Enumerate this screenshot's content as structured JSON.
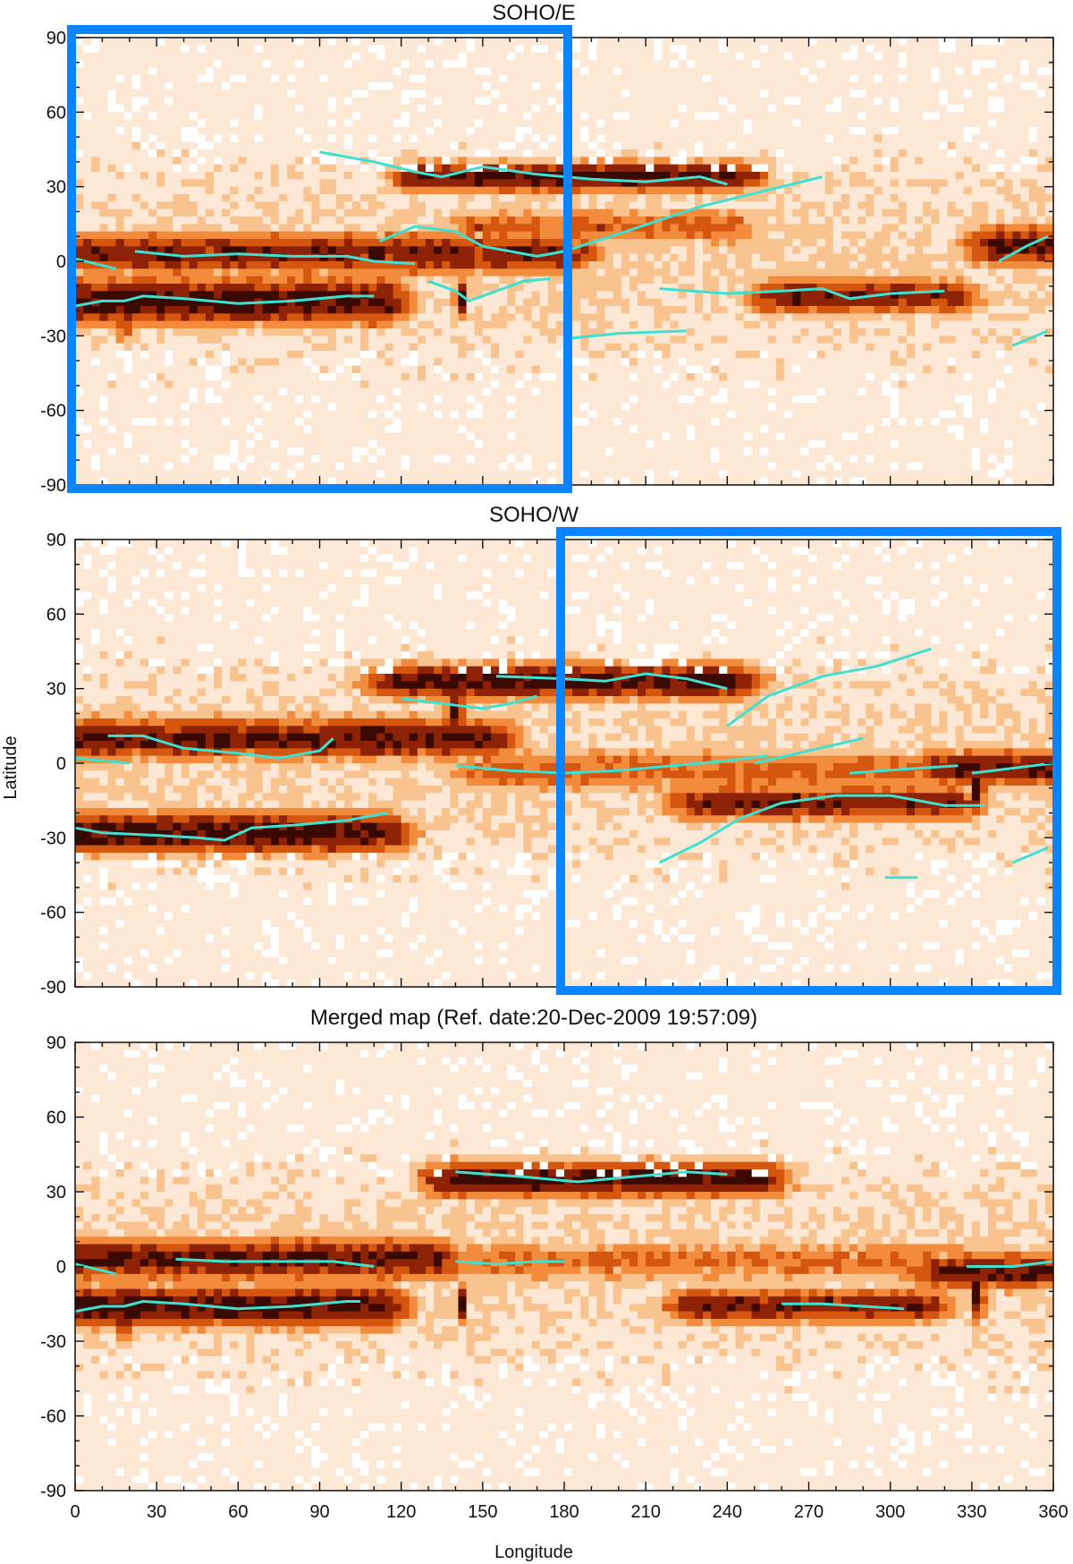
{
  "chart_data": [
    {
      "type": "heatmap",
      "title": "SOHO/E",
      "xlim": [
        0,
        360
      ],
      "ylim": [
        -90,
        90
      ],
      "xticks": [
        0,
        30,
        60,
        90,
        120,
        150,
        180,
        210,
        240,
        270,
        300,
        330,
        360
      ],
      "yticks": [
        90,
        60,
        30,
        0,
        -30,
        -60,
        -90
      ],
      "x_tick_labels_shown": false,
      "colormap": [
        "#ffffff",
        "#fde8d5",
        "#f9c38f",
        "#f28c3c",
        "#d4560f",
        "#8e2206",
        "#3a0a02"
      ],
      "line_color": "#40e0d0",
      "highlight_box": {
        "color": "#0a84ff",
        "lon": [
          0,
          180
        ],
        "lat": [
          -90,
          90
        ]
      },
      "bands": [
        {
          "lon": [
            0,
            180
          ],
          "lat": 3,
          "width": 14,
          "strength": 0.75
        },
        {
          "lon": [
            0,
            110
          ],
          "lat": -16,
          "width": 16,
          "strength": 0.85
        },
        {
          "lon": [
            130,
            240
          ],
          "lat": 34,
          "width": 10,
          "strength": 0.85
        },
        {
          "lon": [
            150,
            240
          ],
          "lat": 14,
          "width": 12,
          "strength": 0.55
        },
        {
          "lon": [
            260,
            320
          ],
          "lat": -14,
          "width": 12,
          "strength": 0.75
        },
        {
          "lon": [
            340,
            360
          ],
          "lat": 6,
          "width": 14,
          "strength": 0.8
        }
      ],
      "spots": [
        {
          "lon": 142,
          "lat": -15,
          "width": 6,
          "strength": 1.0
        },
        {
          "lon": 18,
          "lat": -18,
          "width": 10,
          "strength": 0.9
        }
      ],
      "series": [
        {
          "points": [
            [
              0,
              1
            ],
            [
              15,
              -3
            ]
          ]
        },
        {
          "points": [
            [
              0,
              -18
            ],
            [
              10,
              -16
            ],
            [
              18,
              -16
            ],
            [
              25,
              -14
            ],
            [
              40,
              -15
            ],
            [
              60,
              -17
            ],
            [
              80,
              -16
            ],
            [
              100,
              -14
            ],
            [
              110,
              -14
            ]
          ]
        },
        {
          "points": [
            [
              22,
              4
            ],
            [
              40,
              2
            ],
            [
              60,
              3
            ],
            [
              80,
              2
            ],
            [
              100,
              2
            ],
            [
              110,
              0
            ],
            [
              125,
              -1
            ]
          ]
        },
        {
          "points": [
            [
              90,
              44
            ],
            [
              110,
              40
            ],
            [
              125,
              36
            ],
            [
              135,
              34
            ],
            [
              150,
              38
            ],
            [
              170,
              35
            ],
            [
              190,
              33
            ],
            [
              210,
              32
            ],
            [
              230,
              34
            ],
            [
              240,
              31
            ]
          ]
        },
        {
          "points": [
            [
              112,
              8
            ],
            [
              125,
              14
            ],
            [
              140,
              12
            ],
            [
              150,
              6
            ],
            [
              170,
              2
            ],
            [
              180,
              4
            ],
            [
              200,
              11
            ],
            [
              230,
              22
            ],
            [
              260,
              30
            ],
            [
              275,
              34
            ]
          ]
        },
        {
          "points": [
            [
              130,
              -8
            ],
            [
              140,
              -12
            ],
            [
              145,
              -16
            ],
            [
              155,
              -12
            ],
            [
              165,
              -8
            ],
            [
              175,
              -7
            ]
          ]
        },
        {
          "points": [
            [
              215,
              -11
            ],
            [
              240,
              -13
            ],
            [
              260,
              -12
            ],
            [
              275,
              -11
            ],
            [
              285,
              -15
            ],
            [
              300,
              -13
            ],
            [
              320,
              -12
            ]
          ]
        },
        {
          "points": [
            [
              182,
              -31
            ],
            [
              200,
              -29
            ],
            [
              225,
              -28
            ]
          ]
        },
        {
          "points": [
            [
              340,
              0
            ],
            [
              350,
              6
            ],
            [
              358,
              10
            ]
          ]
        },
        {
          "points": [
            [
              345,
              -34
            ],
            [
              358,
              -28
            ]
          ]
        }
      ]
    },
    {
      "type": "heatmap",
      "title": "SOHO/W",
      "ylabel": "Latitude",
      "xlim": [
        0,
        360
      ],
      "ylim": [
        -90,
        90
      ],
      "xticks": [
        0,
        30,
        60,
        90,
        120,
        150,
        180,
        210,
        240,
        270,
        300,
        330,
        360
      ],
      "yticks": [
        90,
        60,
        30,
        0,
        -30,
        -60,
        -90
      ],
      "x_tick_labels_shown": false,
      "colormap": [
        "#ffffff",
        "#fde8d5",
        "#f9c38f",
        "#f28c3c",
        "#d4560f",
        "#8e2206",
        "#3a0a02"
      ],
      "line_color": "#40e0d0",
      "highlight_box": {
        "color": "#0a84ff",
        "lon": [
          180,
          360
        ],
        "lat": [
          -90,
          90
        ]
      },
      "bands": [
        {
          "lon": [
            0,
            150
          ],
          "lat": 10,
          "width": 14,
          "strength": 0.8
        },
        {
          "lon": [
            0,
            110
          ],
          "lat": -28,
          "width": 14,
          "strength": 0.85
        },
        {
          "lon": [
            120,
            240
          ],
          "lat": 33,
          "width": 12,
          "strength": 0.85
        },
        {
          "lon": [
            150,
            330
          ],
          "lat": -3,
          "width": 14,
          "strength": 0.55
        },
        {
          "lon": [
            230,
            320
          ],
          "lat": -16,
          "width": 12,
          "strength": 0.75
        },
        {
          "lon": [
            320,
            360
          ],
          "lat": -2,
          "width": 12,
          "strength": 0.8
        }
      ],
      "spots": [
        {
          "lon": 140,
          "lat": 20,
          "width": 10,
          "strength": 0.9
        },
        {
          "lon": 332,
          "lat": -12,
          "width": 8,
          "strength": 0.95
        }
      ],
      "series": [
        {
          "points": [
            [
              0,
              2
            ],
            [
              20,
              0
            ]
          ]
        },
        {
          "points": [
            [
              0,
              -26
            ],
            [
              10,
              -28
            ],
            [
              30,
              -29
            ],
            [
              45,
              -30
            ],
            [
              55,
              -31
            ],
            [
              65,
              -26
            ],
            [
              80,
              -25
            ],
            [
              100,
              -23
            ],
            [
              115,
              -20
            ]
          ]
        },
        {
          "points": [
            [
              12,
              11
            ],
            [
              25,
              11
            ],
            [
              40,
              6
            ],
            [
              60,
              4
            ],
            [
              75,
              2
            ],
            [
              90,
              5
            ],
            [
              95,
              10
            ]
          ]
        },
        {
          "points": [
            [
              120,
              26
            ],
            [
              135,
              24
            ],
            [
              150,
              22
            ],
            [
              160,
              24
            ],
            [
              170,
              27
            ]
          ]
        },
        {
          "points": [
            [
              155,
              35
            ],
            [
              180,
              34
            ],
            [
              195,
              33
            ],
            [
              210,
              36
            ],
            [
              225,
              34
            ],
            [
              240,
              30
            ]
          ]
        },
        {
          "points": [
            [
              140,
              -1
            ],
            [
              160,
              -3
            ],
            [
              180,
              -4
            ],
            [
              200,
              -3
            ],
            [
              220,
              -1
            ],
            [
              240,
              1
            ],
            [
              255,
              3
            ]
          ]
        },
        {
          "points": [
            [
              240,
              15
            ],
            [
              255,
              27
            ],
            [
              275,
              35
            ],
            [
              295,
              39
            ],
            [
              315,
              46
            ]
          ]
        },
        {
          "points": [
            [
              250,
              0
            ],
            [
              270,
              5
            ],
            [
              290,
              10
            ]
          ]
        },
        {
          "points": [
            [
              285,
              -4
            ],
            [
              310,
              -2
            ],
            [
              325,
              -1
            ]
          ]
        },
        {
          "points": [
            [
              215,
              -40
            ],
            [
              230,
              -32
            ],
            [
              245,
              -22
            ],
            [
              260,
              -16
            ],
            [
              280,
              -13
            ],
            [
              300,
              -13
            ],
            [
              320,
              -17
            ],
            [
              335,
              -17
            ]
          ]
        },
        {
          "points": [
            [
              330,
              -4
            ],
            [
              345,
              -2
            ],
            [
              360,
              0
            ]
          ]
        },
        {
          "points": [
            [
              298,
              -46
            ],
            [
              310,
              -46
            ]
          ]
        },
        {
          "points": [
            [
              345,
              -40
            ],
            [
              358,
              -34
            ]
          ]
        }
      ]
    },
    {
      "type": "heatmap",
      "title": "Merged map (Ref. date:20-Dec-2009 19:57:09)",
      "xlabel": "Longitude",
      "xlim": [
        0,
        360
      ],
      "ylim": [
        -90,
        90
      ],
      "xticks": [
        0,
        30,
        60,
        90,
        120,
        150,
        180,
        210,
        240,
        270,
        300,
        330,
        360
      ],
      "yticks": [
        90,
        60,
        30,
        0,
        -30,
        -60,
        -90
      ],
      "x_tick_labels_shown": true,
      "colormap": [
        "#ffffff",
        "#fde8d5",
        "#f9c38f",
        "#f28c3c",
        "#d4560f",
        "#8e2206",
        "#3a0a02"
      ],
      "line_color": "#40e0d0",
      "bands": [
        {
          "lon": [
            0,
            130
          ],
          "lat": 3,
          "width": 14,
          "strength": 0.8
        },
        {
          "lon": [
            0,
            110
          ],
          "lat": -16,
          "width": 14,
          "strength": 0.85
        },
        {
          "lon": [
            140,
            250
          ],
          "lat": 35,
          "width": 12,
          "strength": 0.85
        },
        {
          "lon": [
            140,
            330
          ],
          "lat": 2,
          "width": 14,
          "strength": 0.5
        },
        {
          "lon": [
            230,
            310
          ],
          "lat": -16,
          "width": 12,
          "strength": 0.75
        },
        {
          "lon": [
            320,
            360
          ],
          "lat": -2,
          "width": 12,
          "strength": 0.8
        }
      ],
      "spots": [
        {
          "lon": 142,
          "lat": -15,
          "width": 6,
          "strength": 1.0
        },
        {
          "lon": 18,
          "lat": -18,
          "width": 10,
          "strength": 0.9
        },
        {
          "lon": 332,
          "lat": -12,
          "width": 8,
          "strength": 0.95
        }
      ],
      "series": [
        {
          "points": [
            [
              0,
              1
            ],
            [
              15,
              -3
            ]
          ]
        },
        {
          "points": [
            [
              0,
              -18
            ],
            [
              10,
              -16
            ],
            [
              18,
              -16
            ],
            [
              25,
              -14
            ],
            [
              40,
              -15
            ],
            [
              60,
              -17
            ],
            [
              80,
              -16
            ],
            [
              100,
              -14
            ],
            [
              105,
              -14
            ]
          ]
        },
        {
          "points": [
            [
              37,
              3
            ],
            [
              55,
              2
            ],
            [
              75,
              2
            ],
            [
              95,
              2
            ],
            [
              110,
              0
            ]
          ]
        },
        {
          "points": [
            [
              140,
              2
            ],
            [
              155,
              1
            ],
            [
              170,
              2
            ],
            [
              180,
              2
            ]
          ]
        },
        {
          "points": [
            [
              140,
              38
            ],
            [
              165,
              36
            ],
            [
              185,
              34
            ],
            [
              205,
              36
            ],
            [
              225,
              38
            ],
            [
              240,
              37
            ]
          ]
        },
        {
          "points": [
            [
              260,
              -15
            ],
            [
              275,
              -15
            ],
            [
              290,
              -16
            ],
            [
              305,
              -17
            ]
          ]
        },
        {
          "points": [
            [
              328,
              0
            ],
            [
              345,
              0
            ],
            [
              360,
              2
            ]
          ]
        }
      ]
    }
  ]
}
